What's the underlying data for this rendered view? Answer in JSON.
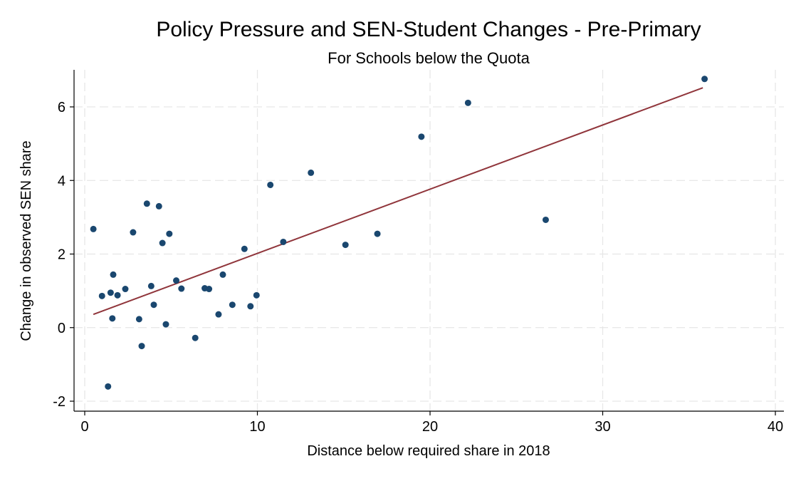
{
  "chart_data": {
    "type": "scatter",
    "title": "Policy Pressure and SEN-Student Changes - Pre-Primary",
    "subtitle": "For Schools below the Quota",
    "xlabel": "Distance below required share in 2018",
    "ylabel": "Change in observed SEN share",
    "xlim": [
      0,
      40
    ],
    "ylim": [
      -2,
      7
    ],
    "xticks": [
      0,
      10,
      20,
      30,
      40
    ],
    "xtick_labels": [
      "0",
      "10",
      "20",
      "30",
      "40"
    ],
    "yticks": [
      -2,
      0,
      2,
      4,
      6
    ],
    "ytick_labels": [
      "-2",
      "0",
      "2",
      "4",
      "6"
    ],
    "grid": true,
    "legend": "none",
    "colors": {
      "points": "#1a476f",
      "fit_line": "#90353b",
      "grid": "#e6e6e6",
      "axis": "#000000"
    },
    "points": [
      {
        "x": 0.5,
        "y": 2.68
      },
      {
        "x": 1.0,
        "y": 0.86
      },
      {
        "x": 1.35,
        "y": -1.6
      },
      {
        "x": 1.5,
        "y": 0.95
      },
      {
        "x": 1.6,
        "y": 0.25
      },
      {
        "x": 1.65,
        "y": 1.44
      },
      {
        "x": 1.9,
        "y": 0.88
      },
      {
        "x": 2.35,
        "y": 1.05
      },
      {
        "x": 2.8,
        "y": 2.59
      },
      {
        "x": 3.15,
        "y": 0.23
      },
      {
        "x": 3.3,
        "y": -0.5
      },
      {
        "x": 3.6,
        "y": 3.37
      },
      {
        "x": 3.85,
        "y": 1.13
      },
      {
        "x": 4.0,
        "y": 0.62
      },
      {
        "x": 4.3,
        "y": 3.3
      },
      {
        "x": 4.5,
        "y": 2.3
      },
      {
        "x": 4.7,
        "y": 0.09
      },
      {
        "x": 4.9,
        "y": 2.55
      },
      {
        "x": 5.3,
        "y": 1.28
      },
      {
        "x": 5.6,
        "y": 1.06
      },
      {
        "x": 6.4,
        "y": -0.28
      },
      {
        "x": 6.95,
        "y": 1.07
      },
      {
        "x": 7.2,
        "y": 1.05
      },
      {
        "x": 7.75,
        "y": 0.36
      },
      {
        "x": 8.0,
        "y": 1.44
      },
      {
        "x": 8.55,
        "y": 0.62
      },
      {
        "x": 9.25,
        "y": 2.14
      },
      {
        "x": 9.6,
        "y": 0.58
      },
      {
        "x": 9.95,
        "y": 0.88
      },
      {
        "x": 10.75,
        "y": 3.88
      },
      {
        "x": 11.5,
        "y": 2.33
      },
      {
        "x": 13.1,
        "y": 4.21
      },
      {
        "x": 15.1,
        "y": 2.25
      },
      {
        "x": 16.95,
        "y": 2.55
      },
      {
        "x": 19.5,
        "y": 5.19
      },
      {
        "x": 22.2,
        "y": 6.11
      },
      {
        "x": 26.7,
        "y": 2.93
      },
      {
        "x": 35.9,
        "y": 6.76
      }
    ],
    "fit_line": {
      "x": [
        0.5,
        35.8
      ],
      "y": [
        0.36,
        6.52
      ]
    }
  }
}
